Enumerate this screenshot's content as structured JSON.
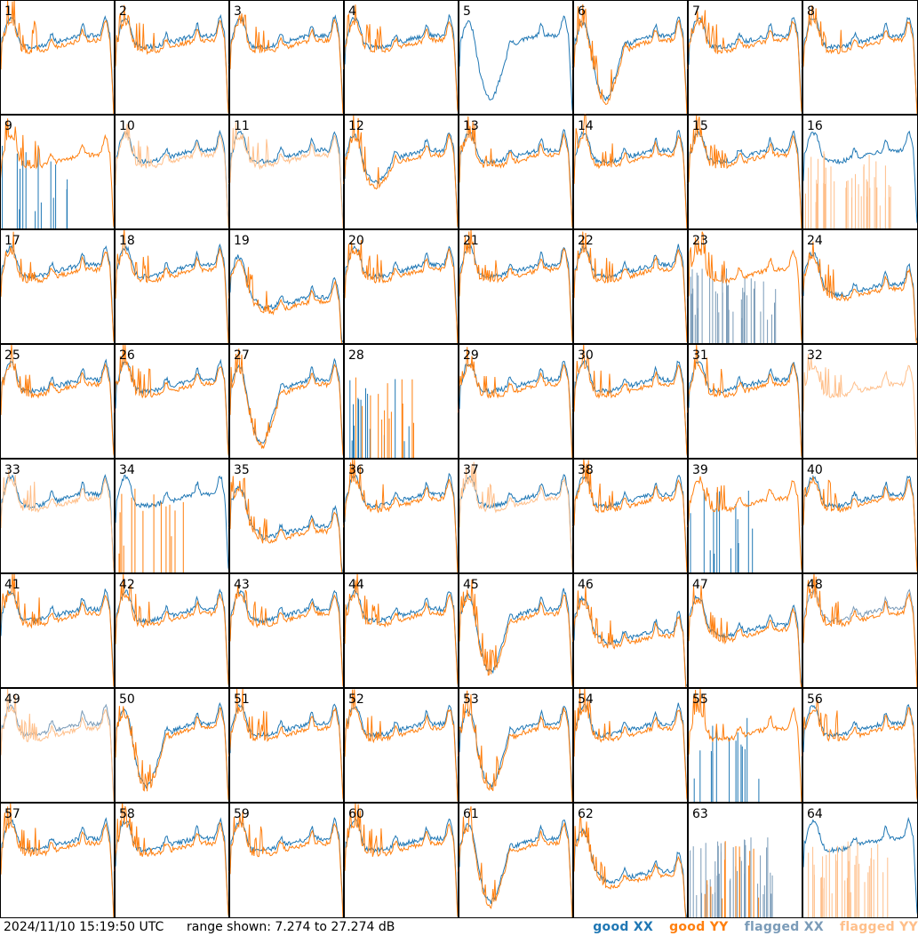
{
  "chart_data": {
    "type": "line",
    "layout": "8x8 small multiples",
    "ylim": [
      7.274,
      27.274
    ],
    "grid": false,
    "legend_position": "bottom-right",
    "panel_labels": [
      "1",
      "2",
      "3",
      "4",
      "5",
      "6",
      "7",
      "8",
      "9",
      "10",
      "11",
      "12",
      "13",
      "14",
      "15",
      "16",
      "17",
      "18",
      "19",
      "20",
      "21",
      "22",
      "23",
      "24",
      "25",
      "26",
      "27",
      "28",
      "29",
      "30",
      "31",
      "32",
      "33",
      "34",
      "35",
      "36",
      "37",
      "38",
      "39",
      "40",
      "41",
      "42",
      "43",
      "44",
      "45",
      "46",
      "47",
      "48",
      "49",
      "50",
      "51",
      "52",
      "53",
      "54",
      "55",
      "56",
      "57",
      "58",
      "59",
      "60",
      "61",
      "62",
      "63",
      "64"
    ],
    "series": [
      {
        "name": "good XX",
        "color": "#1f77b4"
      },
      {
        "name": "good YY",
        "color": "#ff7f0e"
      },
      {
        "name": "flagged XX",
        "color": "#7a9bb8"
      },
      {
        "name": "flagged YY",
        "color": "#ffbf8a"
      }
    ],
    "panel_styles": {
      "1": {
        "xx": "good",
        "yy": "good"
      },
      "5": {
        "xx": "good",
        "yy": "none"
      },
      "9": {
        "xx": "dead-good",
        "yy": "good"
      },
      "10": {
        "xx": "good",
        "yy": "flagged"
      },
      "11": {
        "xx": "good",
        "yy": "flagged"
      },
      "16": {
        "xx": "good",
        "yy": "dead-flagged"
      },
      "23": {
        "xx": "dead-flagged",
        "yy": "good"
      },
      "28": {
        "xx": "dead-good",
        "yy": "dead-good"
      },
      "32": {
        "xx": "none",
        "yy": "flagged"
      },
      "33": {
        "xx": "good",
        "yy": "flagged"
      },
      "34": {
        "xx": "good",
        "yy": "dead-good"
      },
      "37": {
        "xx": "good",
        "yy": "flagged"
      },
      "39": {
        "xx": "dead-good",
        "yy": "good"
      },
      "48": {
        "xx": "flagged",
        "yy": "good"
      },
      "49": {
        "xx": "flagged",
        "yy": "flagged"
      },
      "55": {
        "xx": "dead-good",
        "yy": "good"
      },
      "63": {
        "xx": "dead-flagged",
        "yy": "dead-good"
      },
      "64": {
        "xx": "good",
        "yy": "dead-flagged"
      }
    },
    "panel_traits": {
      "5": {
        "dip": 1
      },
      "6": {
        "dip": 1
      },
      "12": {
        "dip": 0.4
      },
      "19": {
        "drop": 1
      },
      "24": {
        "drop": 0.6
      },
      "27": {
        "dip": 1
      },
      "35": {
        "drop": 1
      },
      "45": {
        "dip": 1
      },
      "46": {
        "drop": 0.7
      },
      "47": {
        "drop": 0.5
      },
      "50": {
        "dip": 1
      },
      "53": {
        "dip": 1
      },
      "61": {
        "dip": 1
      },
      "62": {
        "drop": 1
      }
    }
  },
  "footer": {
    "timestamp": "2024/11/10 15:19:50 UTC",
    "range_text": "range shown: 7.274 to 27.274 dB",
    "legend": {
      "good_xx": "good XX",
      "good_yy": "good YY",
      "flagged_xx": "flagged XX",
      "flagged_yy": "flagged YY"
    },
    "colors": {
      "good_xx": "#1f77b4",
      "good_yy": "#ff7f0e",
      "flagged_xx": "#7a9bb8",
      "flagged_yy": "#ffbf8a"
    }
  }
}
